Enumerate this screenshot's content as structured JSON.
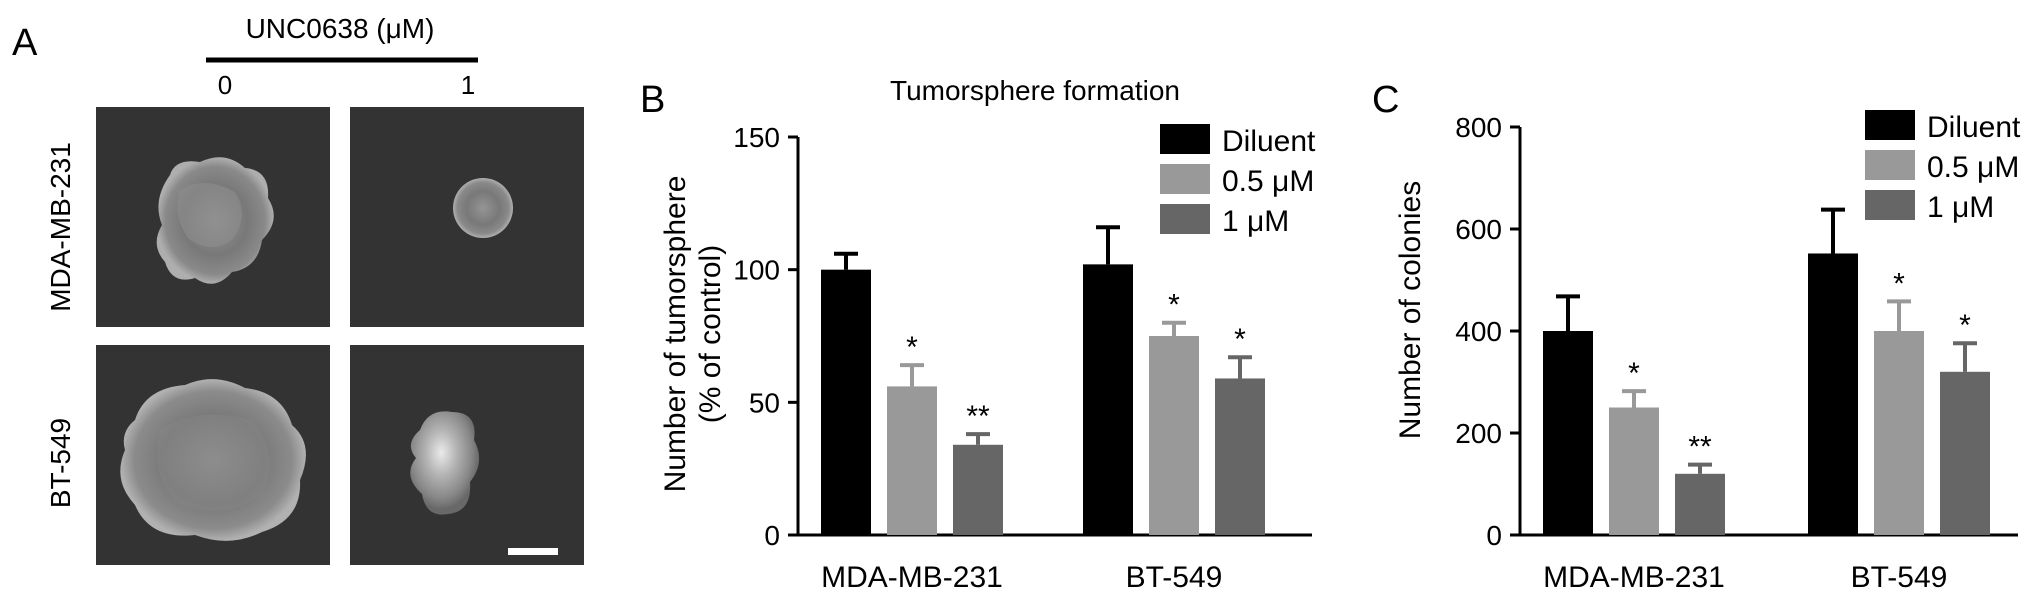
{
  "panel_a": {
    "letter": "A",
    "treatment_label": "UNC0638 (μM)",
    "doses": [
      "0",
      "1"
    ],
    "cell_lines": [
      "MDA-MB-231",
      "BT-549"
    ]
  },
  "chart_data": [
    {
      "type": "bar",
      "panel": "B",
      "title": "Tumorsphere formation",
      "categories": [
        "MDA-MB-231",
        "BT-549"
      ],
      "ylabel": [
        "Number of tumorsphere",
        "(% of control)"
      ],
      "ylim": [
        0,
        150
      ],
      "yticks": [
        0,
        50,
        100,
        150
      ],
      "legend": "top-right",
      "series": [
        {
          "name": "Diluent",
          "color": "#000000",
          "values": [
            100,
            102
          ],
          "errors": [
            6,
            14
          ],
          "significance": [
            "",
            ""
          ]
        },
        {
          "name": "0.5 μM",
          "color": "#999999",
          "values": [
            56,
            75
          ],
          "errors": [
            8,
            5
          ],
          "significance": [
            "*",
            "*"
          ]
        },
        {
          "name": "1 μM",
          "color": "#666666",
          "values": [
            34,
            59
          ],
          "errors": [
            4,
            8
          ],
          "significance": [
            "**",
            "*"
          ]
        }
      ]
    },
    {
      "type": "bar",
      "panel": "C",
      "title": "",
      "categories": [
        "MDA-MB-231",
        "BT-549"
      ],
      "ylabel": [
        "Number of colonies"
      ],
      "ylim": [
        0,
        800
      ],
      "yticks": [
        0,
        200,
        400,
        600,
        800
      ],
      "legend": "top-right",
      "series": [
        {
          "name": "Diluent",
          "color": "#000000",
          "values": [
            400,
            552
          ],
          "errors": [
            68,
            86
          ],
          "significance": [
            "",
            ""
          ]
        },
        {
          "name": "0.5 μM",
          "color": "#999999",
          "values": [
            250,
            400
          ],
          "errors": [
            32,
            58
          ],
          "significance": [
            "*",
            "*"
          ]
        },
        {
          "name": "1 μM",
          "color": "#666666",
          "values": [
            120,
            320
          ],
          "errors": [
            18,
            56
          ],
          "significance": [
            "**",
            "*"
          ]
        }
      ]
    }
  ]
}
